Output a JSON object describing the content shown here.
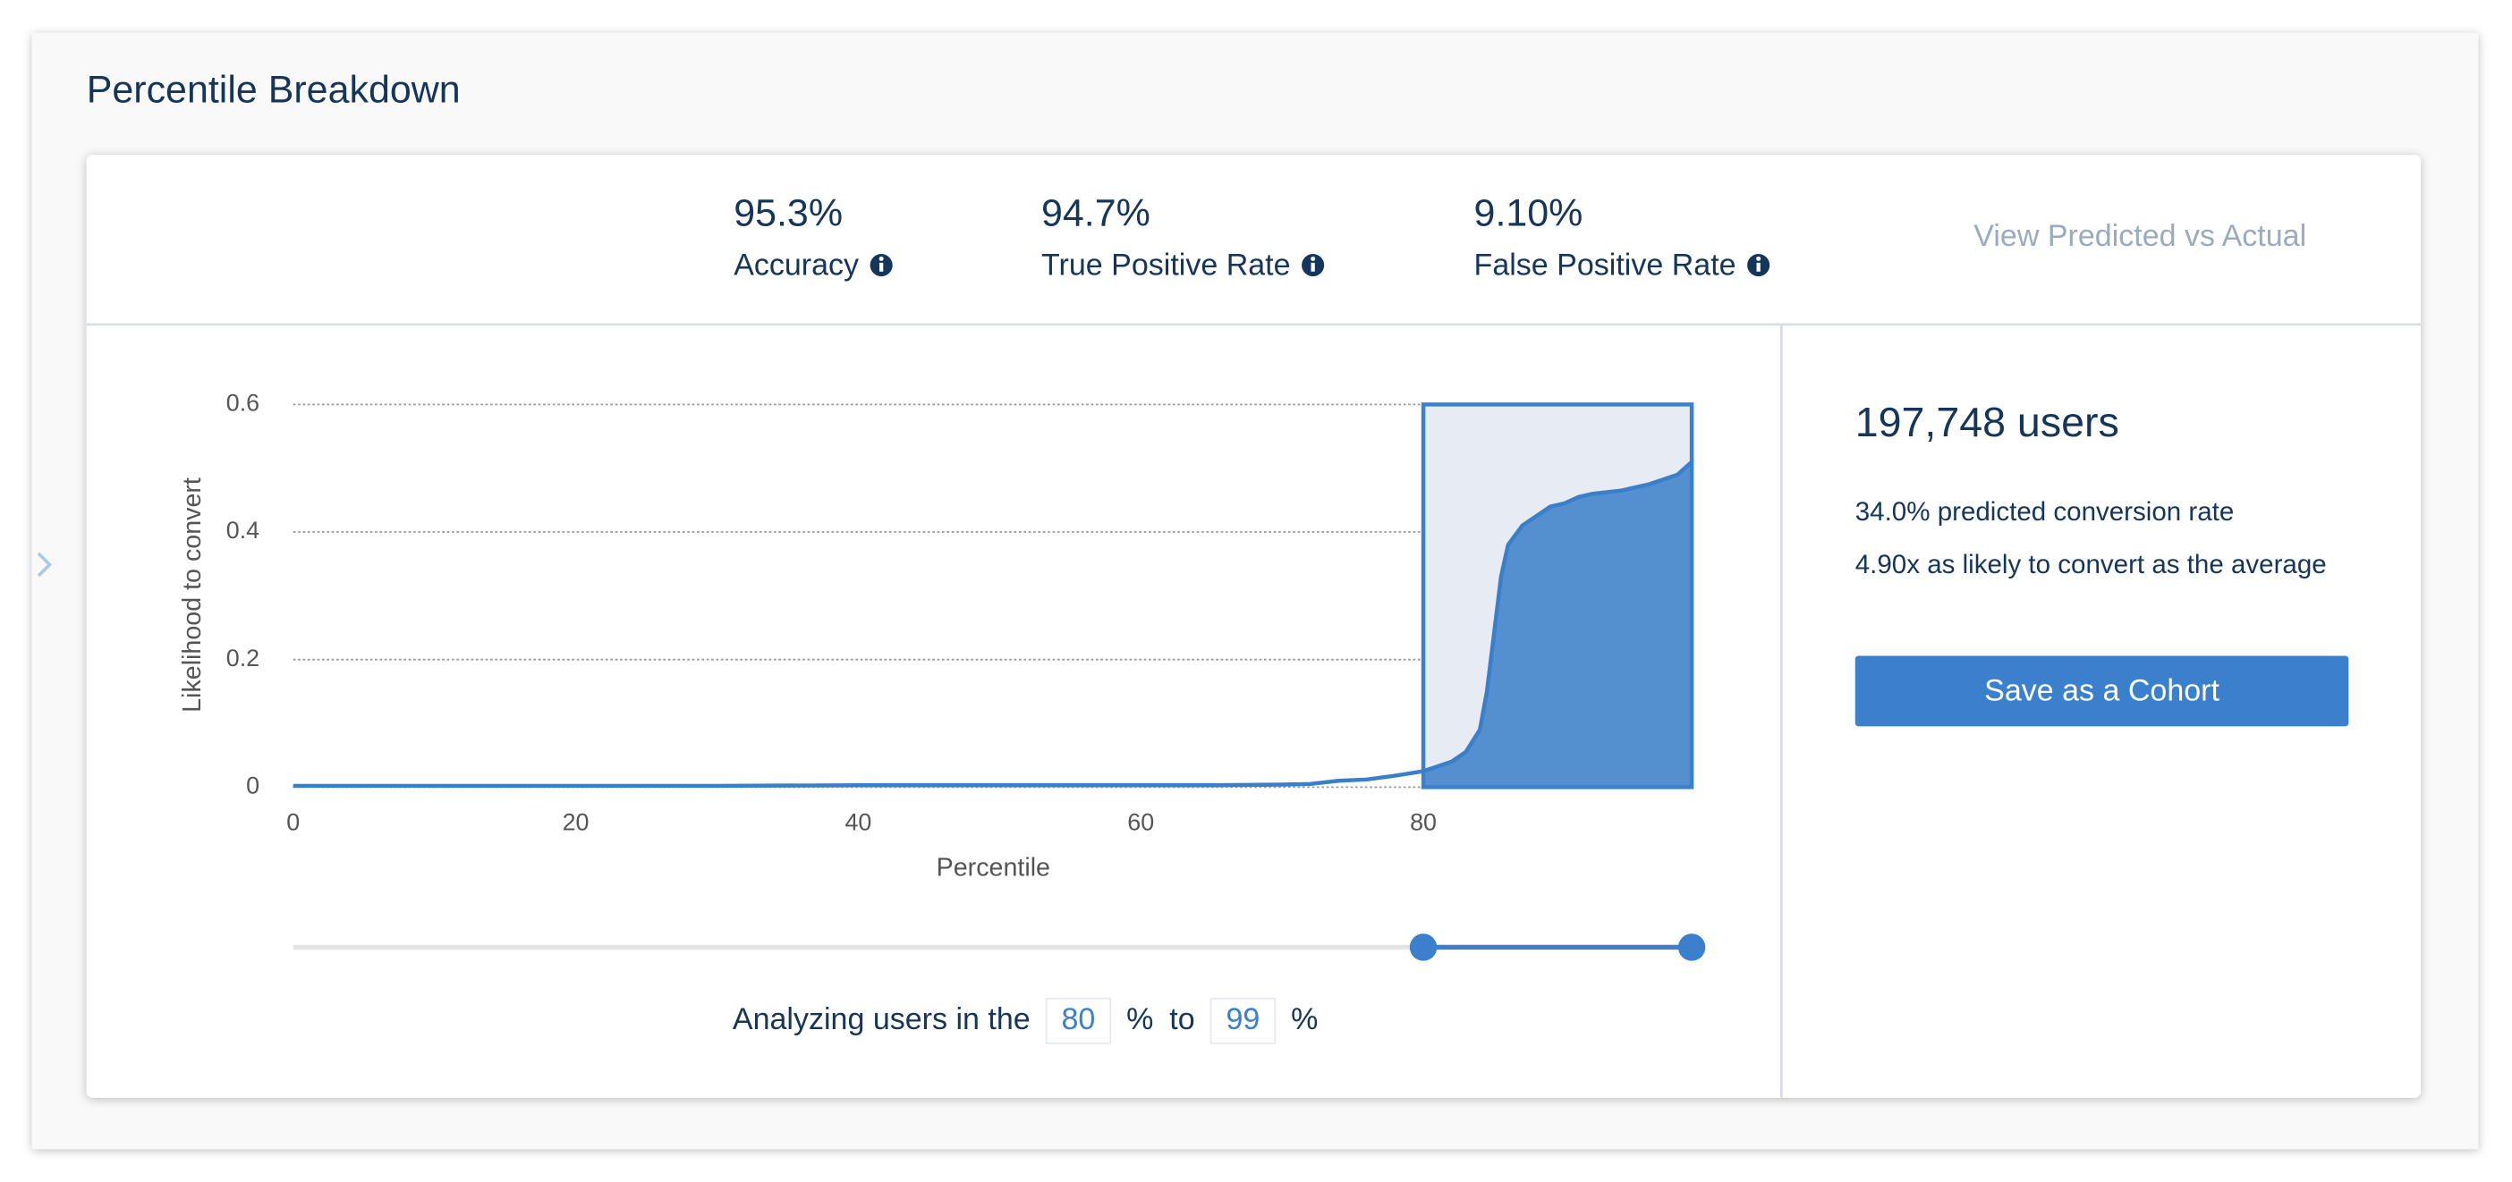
{
  "header": {
    "title": "Percentile Breakdown"
  },
  "metrics": [
    {
      "value": "95.3%",
      "label": "Accuracy"
    },
    {
      "value": "94.7%",
      "label": "True Positive Rate"
    },
    {
      "value": "9.10%",
      "label": "False Positive Rate"
    }
  ],
  "link": "View Predicted vs Actual",
  "chart_data": {
    "type": "area",
    "x_label": "Percentile",
    "y_label": "Likelihood to convert",
    "x": [
      0,
      10,
      20,
      30,
      40,
      50,
      60,
      65,
      70,
      72,
      74,
      76,
      78,
      80,
      82,
      83,
      84,
      84.5,
      85,
      85.5,
      86,
      87,
      88,
      89,
      90,
      91,
      92,
      94,
      96,
      98,
      99
    ],
    "values": [
      0.002,
      0.002,
      0.002,
      0.002,
      0.003,
      0.003,
      0.003,
      0.003,
      0.004,
      0.005,
      0.01,
      0.012,
      0.018,
      0.025,
      0.04,
      0.055,
      0.09,
      0.15,
      0.24,
      0.33,
      0.38,
      0.41,
      0.425,
      0.44,
      0.445,
      0.455,
      0.46,
      0.465,
      0.475,
      0.49,
      0.51
    ],
    "color": "#3a7fc9",
    "xlim": [
      0,
      99
    ],
    "ylim": [
      0,
      0.6
    ],
    "xticks": [
      0,
      20,
      40,
      60,
      80
    ],
    "yticks": [
      0,
      0.2,
      0.4,
      0.6
    ],
    "grid": true,
    "selection": [
      80,
      99
    ]
  },
  "range": {
    "prefix": "Analyzing users in the",
    "unit": "%",
    "joiner": "to"
  },
  "summary": {
    "users": "197,748 users",
    "rate": "34.0% predicted conversion rate",
    "lift": "4.90x as likely to convert as the average"
  },
  "button": "Save as a Cohort"
}
